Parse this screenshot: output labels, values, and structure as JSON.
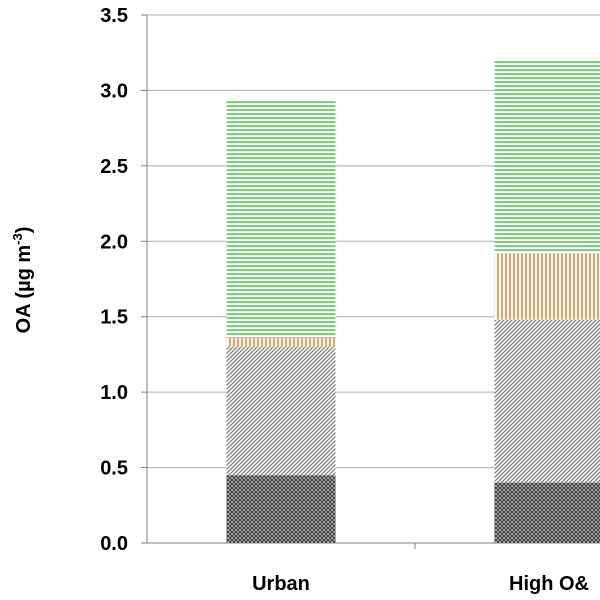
{
  "chart_data": {
    "type": "stacked_bar",
    "y_label": {
      "text": "OA (µg m",
      "superscript": "-3",
      "suffix": ")"
    },
    "categories": [
      "Urban",
      "High O&"
    ],
    "series": [
      {
        "color": "#404040",
        "pattern": "crosshatch",
        "values": [
          0.45,
          0.4
        ]
      },
      {
        "color": "#808080",
        "pattern": "diagonal",
        "values": [
          0.85,
          1.08
        ]
      },
      {
        "color": "#e46c0a",
        "pattern": "vertical",
        "values": [
          0.06,
          0.44
        ]
      },
      {
        "color": "#33bb33",
        "pattern": "horizontal",
        "values": [
          1.58,
          1.29
        ]
      }
    ],
    "ylim": [
      0,
      3.5
    ],
    "yticks": [
      {
        "value": 0,
        "label": "0.0"
      },
      0.5,
      {
        "value": 1,
        "label": "1.0"
      },
      1.5,
      {
        "value": 2,
        "label": "2.0"
      },
      2.5,
      {
        "value": 3,
        "label": "3.0"
      },
      3.5
    ],
    "grid": true
  }
}
